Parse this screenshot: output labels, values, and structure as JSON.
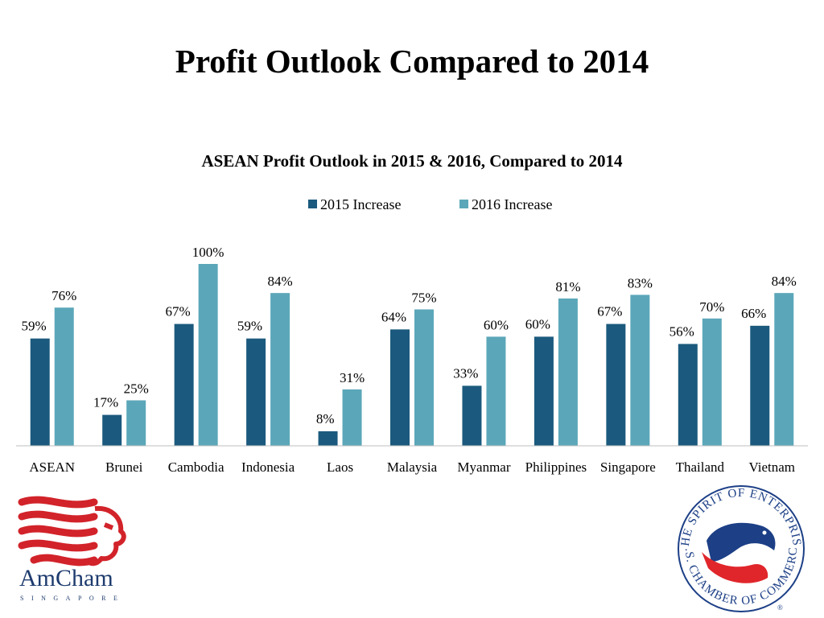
{
  "slide": {
    "title": "Profit Outlook Compared to 2014"
  },
  "chart_data": {
    "type": "bar",
    "title": "ASEAN Profit Outlook in 2015 & 2016, Compared to 2014",
    "xlabel": "",
    "ylabel": "",
    "ylim": [
      0,
      100
    ],
    "grid": false,
    "legend_position": "top",
    "categories": [
      "ASEAN",
      "Brunei",
      "Cambodia",
      "Indonesia",
      "Laos",
      "Malaysia",
      "Myanmar",
      "Philippines",
      "Singapore",
      "Thailand",
      "Vietnam"
    ],
    "series": [
      {
        "name": "2015 Increase",
        "color": "#1b5a7e",
        "values": [
          59,
          17,
          67,
          59,
          8,
          64,
          33,
          60,
          67,
          56,
          66
        ],
        "labels": [
          "59%",
          "17%",
          "67%",
          "59%",
          "8%",
          "64%",
          "33%",
          "60%",
          "67%",
          "56%",
          "66%"
        ]
      },
      {
        "name": "2016 Increase",
        "color": "#5ba7b9",
        "values": [
          76,
          25,
          100,
          84,
          31,
          75,
          60,
          81,
          83,
          70,
          84
        ],
        "labels": [
          "76%",
          "25%",
          "100%",
          "84%",
          "31%",
          "75%",
          "60%",
          "81%",
          "83%",
          "70%",
          "84%"
        ]
      }
    ]
  },
  "logos": {
    "amcham": {
      "name": "AmCham",
      "subtitle": "SINGAPORE",
      "color": "#d2232a",
      "text_color": "#1d3b6e"
    },
    "uscc": {
      "ring_text_top": "THE SPIRIT OF ENTERPRISE",
      "ring_text_bottom": "U.S. CHAMBER OF COMMERCE",
      "mark": "®",
      "red": "#e0262b",
      "blue": "#1c3f86"
    }
  }
}
